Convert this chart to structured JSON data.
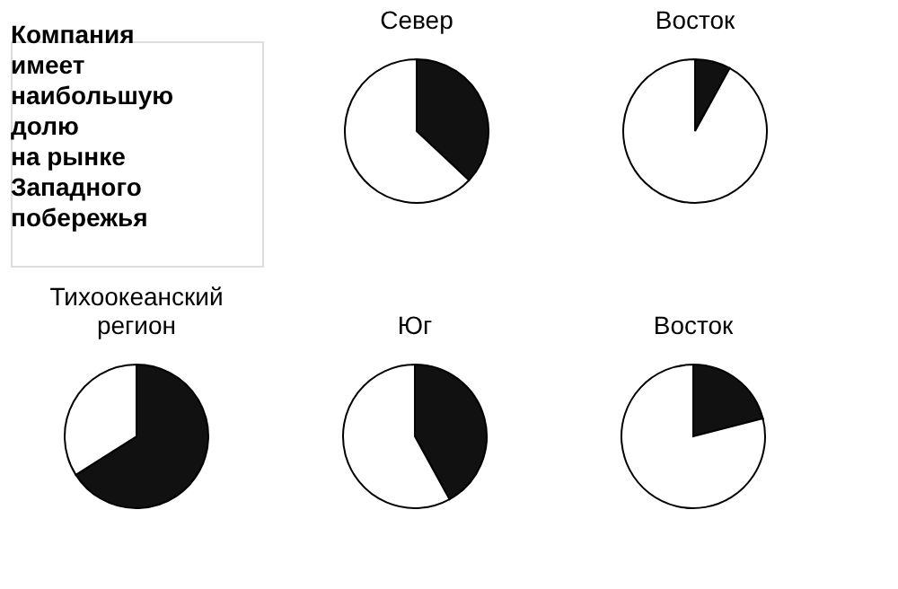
{
  "chart_data": [
    {
      "type": "other",
      "title": "Компания\nимеет\nнаибольшую\nдолю\nна рынке\nЗападного\nпобережья"
    },
    {
      "type": "pie",
      "title": "Север",
      "categories": [
        null,
        null
      ],
      "values": [
        37,
        63
      ],
      "colors": [
        "#111111",
        "#ffffff"
      ]
    },
    {
      "type": "pie",
      "title": "Восток",
      "categories": [
        null,
        null
      ],
      "values": [
        8,
        92
      ],
      "colors": [
        "#111111",
        "#ffffff"
      ]
    },
    {
      "type": "pie",
      "title": "Тихоокеанский\nрегион",
      "categories": [
        null,
        null
      ],
      "values": [
        66,
        34
      ],
      "colors": [
        "#111111",
        "#ffffff"
      ]
    },
    {
      "type": "pie",
      "title": "Юг",
      "categories": [
        null,
        null
      ],
      "values": [
        42,
        58
      ],
      "colors": [
        "#111111",
        "#ffffff"
      ]
    },
    {
      "type": "pie",
      "title": "Восток",
      "categories": [
        null,
        null
      ],
      "values": [
        21,
        79
      ],
      "colors": [
        "#111111",
        "#ffffff"
      ]
    }
  ]
}
